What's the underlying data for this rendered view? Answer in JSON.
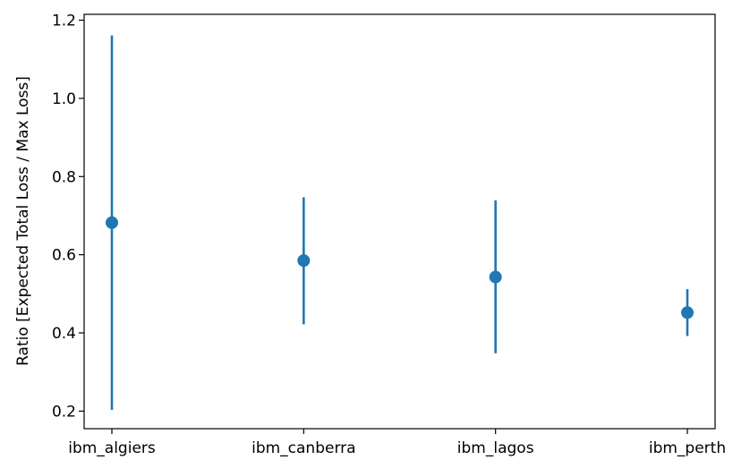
{
  "chart_data": {
    "type": "scatter",
    "subtype": "errorbar",
    "title": "",
    "xlabel": "",
    "ylabel": "Ratio [Expected Total Loss / Max Loss]",
    "categories": [
      "ibm_algiers",
      "ibm_canberra",
      "ibm_lagos",
      "ibm_perth"
    ],
    "values": [
      0.682,
      0.585,
      0.543,
      0.452
    ],
    "error_low": [
      0.203,
      0.422,
      0.348,
      0.392
    ],
    "error_high": [
      1.161,
      0.747,
      0.739,
      0.512
    ],
    "ylim": [
      0.155,
      1.215
    ],
    "yticks": [
      0.2,
      0.4,
      0.6,
      0.8,
      1.0,
      1.2
    ],
    "ytick_labels": [
      "0.2",
      "0.4",
      "0.6",
      "0.8",
      "1.0",
      "1.2"
    ],
    "grid": false,
    "legend": "none",
    "color": "#1f77b4"
  }
}
